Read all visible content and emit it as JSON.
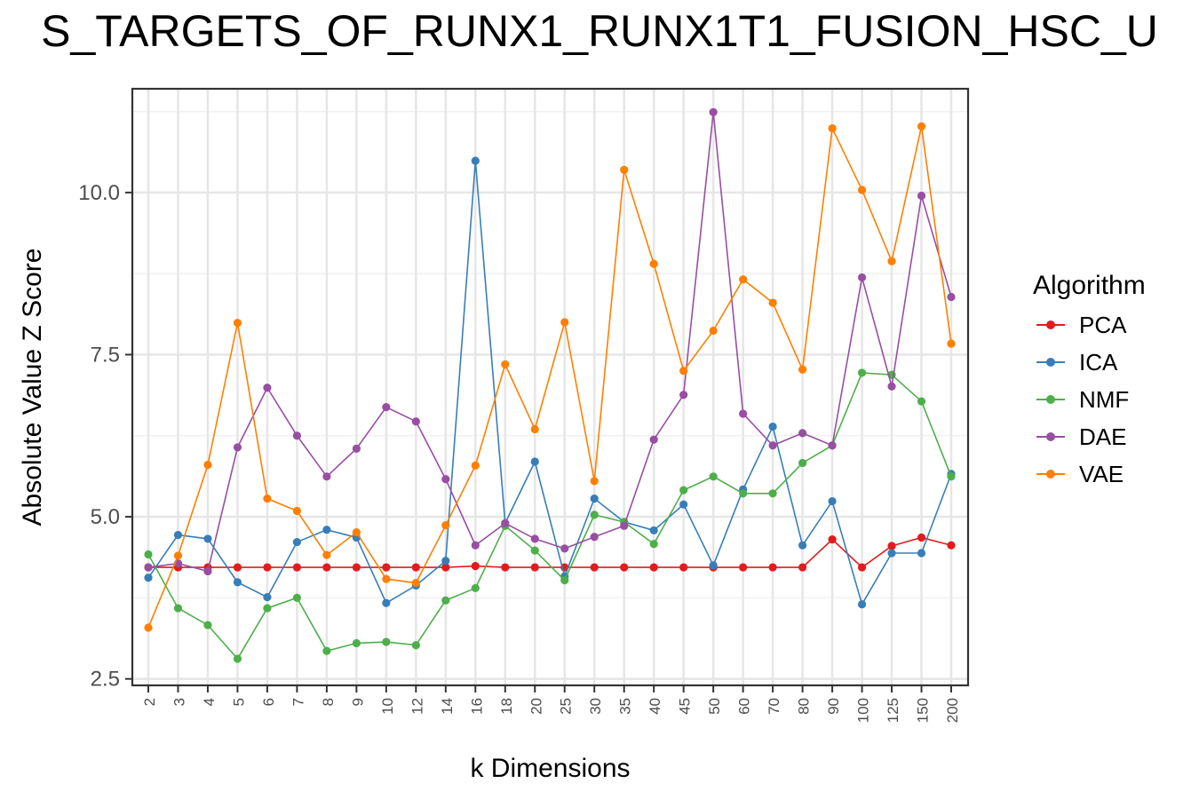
{
  "chart_data": {
    "type": "line",
    "title": "S_TARGETS_OF_RUNX1_RUNX1T1_FUSION_HSC_U",
    "xlabel": "k Dimensions",
    "ylabel": "Absolute Value Z Score",
    "categories": [
      "2",
      "3",
      "4",
      "5",
      "6",
      "7",
      "8",
      "9",
      "10",
      "12",
      "14",
      "16",
      "18",
      "20",
      "25",
      "30",
      "35",
      "40",
      "45",
      "50",
      "60",
      "70",
      "80",
      "90",
      "100",
      "125",
      "150",
      "200"
    ],
    "ylim": [
      2.4,
      11.6
    ],
    "yticks": [
      2.5,
      5.0,
      7.5,
      10.0
    ],
    "ytick_labels": [
      "2.5",
      "5.0",
      "7.5",
      "10.0"
    ],
    "grid": true,
    "legend_title": "Algorithm",
    "legend_position": "right",
    "series": [
      {
        "name": "PCA",
        "color": "#e41a1c",
        "values": [
          4.22,
          4.22,
          4.22,
          4.22,
          4.22,
          4.22,
          4.22,
          4.22,
          4.22,
          4.22,
          4.22,
          4.24,
          4.22,
          4.22,
          4.22,
          4.22,
          4.22,
          4.22,
          4.22,
          4.22,
          4.22,
          4.22,
          4.22,
          4.65,
          4.22,
          4.55,
          4.68,
          4.56
        ]
      },
      {
        "name": "ICA",
        "color": "#377eb8",
        "values": [
          4.06,
          4.72,
          4.66,
          3.99,
          3.76,
          4.61,
          4.8,
          4.68,
          3.67,
          3.94,
          4.32,
          10.49,
          4.9,
          5.85,
          4.08,
          5.28,
          4.92,
          4.79,
          5.19,
          4.25,
          5.42,
          6.39,
          4.56,
          5.24,
          3.65,
          4.44,
          4.44,
          5.66
        ]
      },
      {
        "name": "NMF",
        "color": "#4daf4a",
        "values": [
          4.42,
          3.59,
          3.33,
          2.81,
          3.59,
          3.75,
          2.93,
          3.05,
          3.07,
          3.02,
          3.71,
          3.9,
          4.86,
          4.48,
          4.02,
          5.03,
          4.92,
          4.58,
          5.41,
          5.62,
          5.36,
          5.36,
          5.83,
          6.1,
          7.22,
          7.19,
          6.78,
          5.62
        ]
      },
      {
        "name": "DAE",
        "color": "#984ea3",
        "values": [
          4.22,
          4.28,
          4.16,
          6.07,
          6.99,
          6.25,
          5.62,
          6.05,
          6.69,
          6.47,
          5.58,
          4.56,
          4.9,
          4.66,
          4.51,
          4.69,
          4.86,
          6.19,
          6.88,
          11.24,
          6.59,
          6.1,
          6.29,
          6.1,
          8.69,
          7.01,
          9.95,
          8.39
        ]
      },
      {
        "name": "VAE",
        "color": "#ff7f00",
        "values": [
          3.29,
          4.4,
          5.8,
          7.99,
          5.28,
          5.09,
          4.41,
          4.76,
          4.04,
          3.98,
          4.87,
          5.79,
          7.35,
          6.35,
          8.0,
          5.55,
          10.35,
          8.9,
          7.25,
          7.87,
          8.66,
          8.3,
          7.27,
          10.99,
          10.04,
          8.94,
          11.02,
          7.67
        ]
      }
    ]
  }
}
